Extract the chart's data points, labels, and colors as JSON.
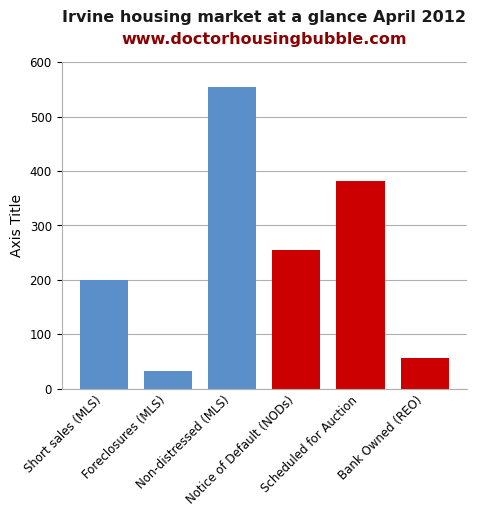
{
  "categories": [
    "Short sales (MLS)",
    "Foreclosures (MLS)",
    "Non-distressed (MLS)",
    "Notice of Default (NODs)",
    "Scheduled for Auction",
    "Bank Owned (REO)"
  ],
  "values": [
    200,
    33,
    555,
    255,
    382,
    57
  ],
  "bar_colors": [
    "#5b8fc9",
    "#5b8fc9",
    "#5b8fc9",
    "#cc0000",
    "#cc0000",
    "#cc0000"
  ],
  "title_line1": "Irvine housing market at a glance April 2012",
  "title_line2": "www.doctorhousingbubble.com",
  "ylabel": "Axis Title",
  "ylim": [
    0,
    600
  ],
  "yticks": [
    0,
    100,
    200,
    300,
    400,
    500,
    600
  ],
  "title_fontsize": 11.5,
  "title1_color": "#1a1a1a",
  "title2_color": "#8B0000",
  "ylabel_fontsize": 10,
  "tick_label_fontsize": 8.5,
  "background_color": "#ffffff",
  "grid_color": "#b0b0b0",
  "bar_width": 0.75
}
